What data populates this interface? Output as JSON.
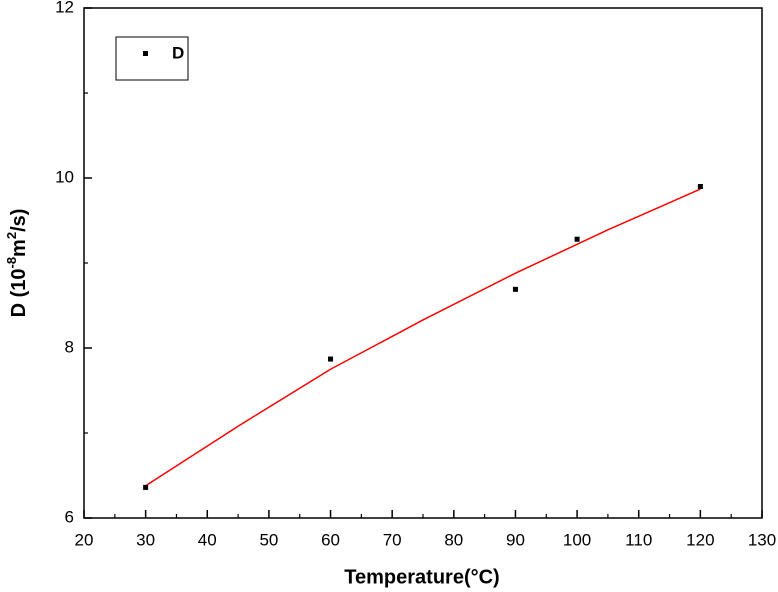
{
  "chart_data": {
    "type": "scatter",
    "xlabel": "Temperature(°C)",
    "ylabel": {
      "base": "D (10",
      "exp1": "-8",
      "mid": "m",
      "exp2": "2",
      "tail": "/s)"
    },
    "x": [
      30,
      60,
      90,
      100,
      120
    ],
    "series": [
      {
        "name": "D",
        "color": "#000000",
        "values": [
          6.36,
          7.87,
          8.69,
          9.28,
          9.9
        ]
      }
    ],
    "fit": {
      "color": "#ff0000",
      "x": [
        30,
        45,
        60,
        75,
        90,
        105,
        120
      ],
      "values": [
        6.38,
        7.08,
        7.75,
        8.33,
        8.88,
        9.39,
        9.87
      ]
    },
    "xlim": [
      20,
      130
    ],
    "ylim": [
      6,
      12
    ],
    "xticks": [
      20,
      30,
      40,
      50,
      60,
      70,
      80,
      90,
      100,
      110,
      120,
      130
    ],
    "yticks": [
      6,
      8,
      10,
      12
    ],
    "xticks_minor": [
      25,
      35,
      45,
      55,
      65,
      75,
      85,
      95,
      105,
      115,
      125
    ],
    "yticks_minor": [
      7,
      9,
      11
    ],
    "legend": "upper left"
  }
}
